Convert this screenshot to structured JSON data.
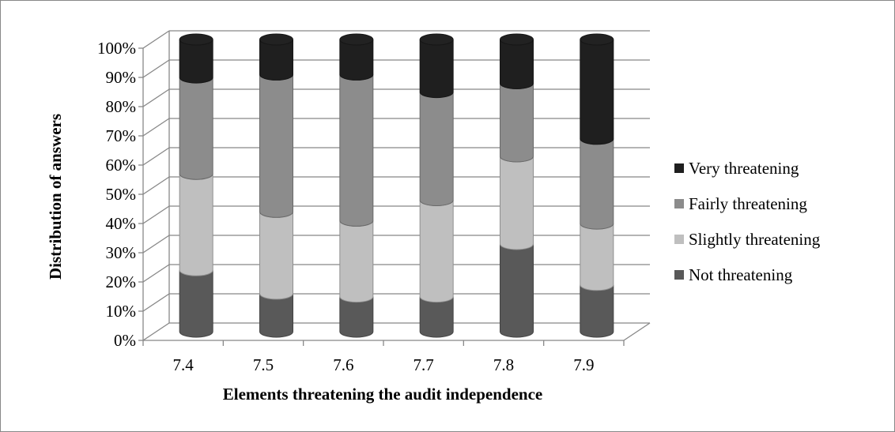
{
  "chart_data": {
    "type": "bar",
    "stacked": true,
    "three_d": true,
    "categories": [
      "7.4",
      "7.5",
      "7.6",
      "7.7",
      "7.8",
      "7.9"
    ],
    "series": [
      {
        "name": "Not threatening",
        "color": "#595959",
        "values": [
          21,
          13,
          12,
          12,
          30,
          16
        ]
      },
      {
        "name": "Slightly threatening",
        "color": "#bfbfbf",
        "values": [
          33,
          28,
          26,
          33,
          30,
          21
        ]
      },
      {
        "name": "Fairly threatening",
        "color": "#8c8c8c",
        "values": [
          33,
          47,
          50,
          37,
          25,
          29
        ]
      },
      {
        "name": "Very threatening",
        "color": "#1f1f1f",
        "values": [
          13,
          12,
          12,
          18,
          15,
          34
        ]
      }
    ],
    "legend_order": [
      "Very threatening",
      "Fairly threatening",
      "Slightly threatening",
      "Not threatening"
    ],
    "xlabel": "Elements threatening the audit independence",
    "ylabel": "Distribution of answers",
    "ylim": [
      0,
      100
    ],
    "yticks": [
      "0%",
      "10%",
      "20%",
      "30%",
      "40%",
      "50%",
      "60%",
      "70%",
      "80%",
      "90%",
      "100%"
    ],
    "grid": true,
    "legend_position": "right"
  }
}
